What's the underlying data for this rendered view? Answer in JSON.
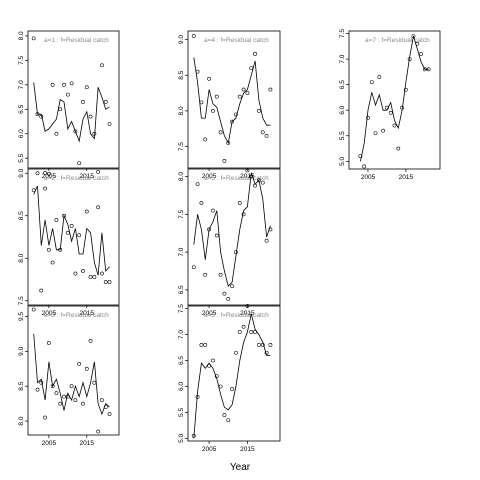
{
  "figure": {
    "xlabel": "Year"
  },
  "chart_data": [
    {
      "type": "scatter",
      "label": "a=1  :  f=Residual catch",
      "x_ticks": [
        2005,
        2015
      ],
      "y_ticks": [
        "5.5",
        "6.0",
        "6.5",
        "7.0",
        "7.5",
        "8.0"
      ],
      "xlim": [
        1999.5,
        2023.5
      ],
      "ylim": [
        5.3,
        8.1
      ],
      "points": {
        "x": [
          2001,
          2002,
          2003,
          2004,
          2005,
          2006,
          2007,
          2008,
          2009,
          2010,
          2011,
          2012,
          2013,
          2014,
          2015,
          2016,
          2017,
          2018,
          2019,
          2020,
          2021
        ],
        "y": [
          7.95,
          6.4,
          6.35,
          5.2,
          5.18,
          7.0,
          6.0,
          6.5,
          7.0,
          6.8,
          7.03,
          6.05,
          5.4,
          6.65,
          6.95,
          6.35,
          6.0,
          5.22,
          7.4,
          6.65,
          6.2
        ]
      },
      "fit": {
        "x": [
          2001,
          2002,
          2003,
          2004,
          2005,
          2006,
          2007,
          2008,
          2009,
          2010,
          2011,
          2012,
          2013,
          2014,
          2015,
          2016,
          2017,
          2018,
          2019,
          2020,
          2021
        ],
        "y": [
          7.05,
          6.4,
          6.4,
          6.05,
          6.1,
          6.2,
          6.3,
          6.7,
          6.65,
          6.1,
          6.25,
          6.05,
          5.85,
          6.3,
          6.45,
          6.0,
          5.9,
          6.95,
          6.75,
          6.5,
          6.55
        ]
      }
    },
    {
      "type": "scatter",
      "label": "a=2  :  f=Residual catch",
      "x_ticks": [
        2005,
        2015
      ],
      "y_ticks": [
        "7.5",
        "8.0",
        "8.5",
        "9.0"
      ],
      "xlim": [
        1999.5,
        2023.5
      ],
      "ylim": [
        7.45,
        9.05
      ],
      "points": {
        "x": [
          2001,
          2002,
          2003,
          2004,
          2005,
          2006,
          2007,
          2008,
          2009,
          2010,
          2011,
          2012,
          2013,
          2014,
          2015,
          2016,
          2017,
          2018,
          2019,
          2020,
          2021
        ],
        "y": [
          8.8,
          9.0,
          7.62,
          8.82,
          8.1,
          7.95,
          8.45,
          8.1,
          8.5,
          8.3,
          8.38,
          7.82,
          8.27,
          7.85,
          8.55,
          7.78,
          7.78,
          8.6,
          7.82,
          7.72,
          7.72
        ]
      },
      "fit": {
        "x": [
          2001,
          2002,
          2003,
          2004,
          2005,
          2006,
          2007,
          2008,
          2009,
          2010,
          2011,
          2012,
          2013,
          2014,
          2015,
          2016,
          2017,
          2018,
          2019,
          2020,
          2021
        ],
        "y": [
          8.75,
          8.85,
          8.15,
          8.45,
          8.15,
          8.35,
          8.1,
          8.1,
          8.5,
          8.4,
          8.2,
          8.35,
          8.05,
          8.05,
          8.35,
          8.3,
          7.95,
          7.8,
          8.3,
          7.85,
          7.9
        ]
      }
    },
    {
      "type": "scatter",
      "label": "a=3  :  f=Residual catch",
      "x_ticks": [
        2005,
        2015
      ],
      "y_ticks": [
        "8.0",
        "8.5",
        "9.0",
        "9.5"
      ],
      "xlim": [
        1999.5,
        2023.5
      ],
      "ylim": [
        7.8,
        9.65
      ],
      "points": {
        "x": [
          2001,
          2002,
          2003,
          2004,
          2005,
          2006,
          2007,
          2008,
          2009,
          2010,
          2011,
          2012,
          2013,
          2014,
          2015,
          2016,
          2017,
          2018,
          2019,
          2020,
          2021
        ],
        "y": [
          9.6,
          8.45,
          8.55,
          8.05,
          9.12,
          8.5,
          8.4,
          8.25,
          8.35,
          8.35,
          8.5,
          8.3,
          8.82,
          8.25,
          8.75,
          9.15,
          8.55,
          7.85,
          8.3,
          8.2,
          8.1
        ]
      },
      "fit": {
        "x": [
          2001,
          2002,
          2003,
          2004,
          2005,
          2006,
          2007,
          2008,
          2009,
          2010,
          2011,
          2012,
          2013,
          2014,
          2015,
          2016,
          2017,
          2018,
          2019,
          2020,
          2021
        ],
        "y": [
          9.25,
          8.55,
          8.6,
          8.3,
          8.85,
          8.5,
          8.6,
          8.4,
          8.15,
          8.4,
          8.3,
          8.5,
          8.35,
          8.55,
          8.35,
          8.55,
          8.85,
          8.25,
          8.1,
          8.25,
          8.2
        ]
      }
    },
    {
      "type": "scatter",
      "label": "a=4  :  f=Residual catch",
      "x_ticks": [
        2005,
        2015
      ],
      "y_ticks": [
        "7.5",
        "8.0",
        "8.5",
        "9.0"
      ],
      "xlim": [
        1999.5,
        2023.5
      ],
      "ylim": [
        7.2,
        9.12
      ],
      "points": {
        "x": [
          2001,
          2002,
          2003,
          2004,
          2005,
          2006,
          2007,
          2008,
          2009,
          2010,
          2011,
          2012,
          2013,
          2014,
          2015,
          2016,
          2017,
          2018,
          2019,
          2020,
          2021
        ],
        "y": [
          9.05,
          8.55,
          8.12,
          7.6,
          8.45,
          8.0,
          8.2,
          7.7,
          7.3,
          7.55,
          7.85,
          7.95,
          8.2,
          8.3,
          8.25,
          8.6,
          8.8,
          8.0,
          7.7,
          7.65,
          8.3
        ]
      },
      "fit": {
        "x": [
          2001,
          2002,
          2003,
          2004,
          2005,
          2006,
          2007,
          2008,
          2009,
          2010,
          2011,
          2012,
          2013,
          2014,
          2015,
          2016,
          2017,
          2018,
          2019,
          2020,
          2021
        ],
        "y": [
          8.75,
          8.4,
          7.9,
          7.9,
          8.3,
          8.1,
          8.05,
          7.85,
          7.65,
          7.55,
          7.85,
          7.9,
          8.1,
          8.25,
          8.3,
          8.5,
          8.7,
          8.15,
          7.9,
          7.8,
          7.8
        ]
      }
    },
    {
      "type": "scatter",
      "label": "a=5  :  f=Residual catch",
      "x_ticks": [
        2005,
        2015
      ],
      "y_ticks": [
        "6.5",
        "7.0",
        "7.5",
        "8.0"
      ],
      "xlim": [
        1999.5,
        2023.5
      ],
      "ylim": [
        6.3,
        8.1
      ],
      "points": {
        "x": [
          2001,
          2002,
          2003,
          2004,
          2005,
          2006,
          2007,
          2008,
          2009,
          2010,
          2011,
          2012,
          2013,
          2014,
          2015,
          2016,
          2017,
          2018,
          2019,
          2020,
          2021
        ],
        "y": [
          6.8,
          7.9,
          7.65,
          6.7,
          7.3,
          7.55,
          7.22,
          6.7,
          6.45,
          6.38,
          6.55,
          7.0,
          7.65,
          7.5,
          8.08,
          8.0,
          7.88,
          7.95,
          7.92,
          7.15,
          7.3
        ]
      },
      "fit": {
        "x": [
          2001,
          2002,
          2003,
          2004,
          2005,
          2006,
          2007,
          2008,
          2009,
          2010,
          2011,
          2012,
          2013,
          2014,
          2015,
          2016,
          2017,
          2018,
          2019,
          2020,
          2021
        ],
        "y": [
          7.1,
          7.5,
          7.3,
          6.9,
          7.3,
          7.4,
          7.55,
          7.0,
          6.75,
          6.55,
          6.6,
          6.95,
          7.3,
          7.55,
          7.6,
          8.05,
          7.9,
          7.95,
          7.7,
          7.2,
          7.35
        ]
      }
    },
    {
      "type": "scatter",
      "label": "a=6  :  f=Residual catch",
      "x_ticks": [
        2005,
        2015
      ],
      "y_ticks": [
        "5.0",
        "5.5",
        "6.0",
        "6.5",
        "7.0",
        "7.5"
      ],
      "xlim": [
        1999.5,
        2023.5
      ],
      "ylim": [
        4.95,
        7.55
      ],
      "points": {
        "x": [
          2001,
          2002,
          2003,
          2004,
          2005,
          2006,
          2007,
          2008,
          2009,
          2010,
          2011,
          2012,
          2013,
          2014,
          2015,
          2016,
          2017,
          2018,
          2019,
          2020,
          2021
        ],
        "y": [
          5.05,
          5.8,
          6.8,
          6.8,
          6.4,
          6.5,
          6.2,
          6.0,
          5.45,
          5.35,
          5.95,
          6.65,
          7.05,
          7.15,
          7.55,
          7.05,
          7.05,
          6.8,
          6.8,
          6.65,
          6.8
        ]
      },
      "fit": {
        "x": [
          2001,
          2002,
          2003,
          2004,
          2005,
          2006,
          2007,
          2008,
          2009,
          2010,
          2011,
          2012,
          2013,
          2014,
          2015,
          2016,
          2017,
          2018,
          2019,
          2020,
          2021
        ],
        "y": [
          5.0,
          5.9,
          6.45,
          6.35,
          6.45,
          6.35,
          6.15,
          5.85,
          5.6,
          5.55,
          5.65,
          6.0,
          6.5,
          6.85,
          7.05,
          7.4,
          7.1,
          7.0,
          6.85,
          6.6,
          6.6
        ]
      }
    },
    {
      "type": "scatter",
      "label": "a=7  :  f=Residual catch",
      "x_ticks": [
        2005,
        2015
      ],
      "y_ticks": [
        "5.0",
        "5.5",
        "6.0",
        "6.5",
        "7.0",
        "7.5"
      ],
      "xlim": [
        2000,
        2024
      ],
      "ylim": [
        4.85,
        7.55
      ],
      "points": {
        "x": [
          2003,
          2004,
          2005,
          2006,
          2007,
          2008,
          2009,
          2010,
          2011,
          2012,
          2013,
          2014,
          2015,
          2016,
          2017,
          2018,
          2019,
          2020,
          2021
        ],
        "y": [
          5.1,
          4.9,
          5.85,
          6.55,
          5.55,
          6.65,
          5.6,
          6.05,
          5.95,
          5.7,
          5.25,
          6.05,
          6.4,
          7.0,
          7.45,
          7.3,
          7.1,
          6.8,
          6.8
        ]
      },
      "fit": {
        "x": [
          2003,
          2004,
          2005,
          2006,
          2007,
          2008,
          2009,
          2010,
          2011,
          2012,
          2013,
          2014,
          2015,
          2016,
          2017,
          2018,
          2019,
          2020,
          2021
        ],
        "y": [
          5.0,
          5.35,
          6.0,
          6.35,
          6.1,
          6.3,
          6.0,
          6.0,
          6.15,
          5.8,
          5.65,
          6.0,
          6.55,
          7.05,
          7.45,
          7.2,
          6.95,
          6.8,
          6.8
        ]
      }
    }
  ]
}
